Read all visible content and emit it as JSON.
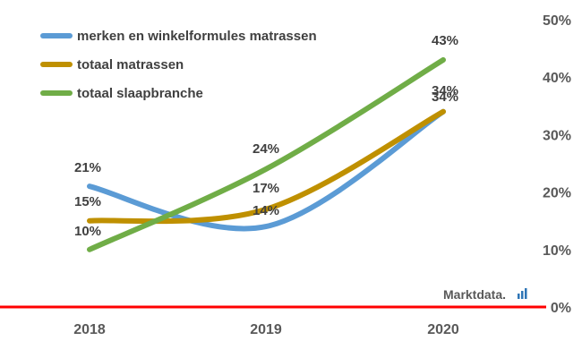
{
  "chart_data": {
    "type": "line",
    "x": [
      "2018",
      "2019",
      "2020"
    ],
    "series": [
      {
        "name": "merken en winkelformules matrassen",
        "values": [
          21,
          14,
          34
        ],
        "color": "#5b9bd5",
        "labels": [
          "21%",
          "14%",
          "34%"
        ]
      },
      {
        "name": "totaal matrassen",
        "values": [
          15,
          17,
          34
        ],
        "color": "#bf9000",
        "labels": [
          "15%",
          "17%",
          "34%"
        ]
      },
      {
        "name": "totaal slaapbranche",
        "values": [
          10,
          24,
          43
        ],
        "color": "#70ad47",
        "labels": [
          "10%",
          "24%",
          "43%"
        ]
      }
    ],
    "y_axis": {
      "position": "right",
      "ylim": [
        0,
        50
      ],
      "ticks": [
        0,
        10,
        20,
        30,
        40,
        50
      ],
      "tick_labels": [
        "0%",
        "10%",
        "20%",
        "30%",
        "40%",
        "50%"
      ]
    },
    "baseline_color": "#ff0000",
    "grid": false,
    "legend_position": "top-left",
    "smooth": true
  },
  "brand": {
    "text": "Marktdata.",
    "accent_color": "#2e75b6"
  }
}
